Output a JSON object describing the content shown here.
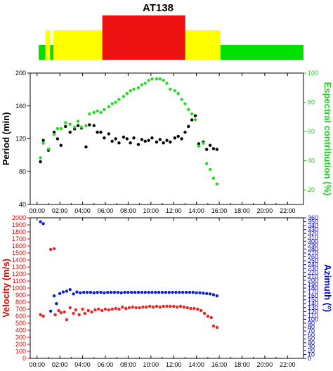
{
  "chart_data": [
    {
      "type": "timeline-bar",
      "title": "AT138",
      "segments": [
        {
          "start": 0.0,
          "end": 0.6,
          "level": 1,
          "color": "#00e000"
        },
        {
          "start": 0.6,
          "end": 1.0,
          "level": 2,
          "color": "#ffff00"
        },
        {
          "start": 1.0,
          "end": 1.3,
          "level": 1,
          "color": "#00e000"
        },
        {
          "start": 1.3,
          "end": 5.6,
          "level": 2,
          "color": "#ffff00"
        },
        {
          "start": 5.6,
          "end": 12.9,
          "level": 3,
          "color": "#ee1111"
        },
        {
          "start": 12.9,
          "end": 16.0,
          "level": 2,
          "color": "#ffff00"
        },
        {
          "start": 16.0,
          "end": 23.3,
          "level": 1,
          "color": "#00e000"
        }
      ]
    },
    {
      "type": "scatter",
      "xticks": [
        "00:00",
        "02:00",
        "04:00",
        "06:00",
        "08:00",
        "10:00",
        "12:00",
        "14:00",
        "16:00",
        "18:00",
        "20:00",
        "22:00"
      ],
      "xlim": [
        -0.6,
        23.4
      ],
      "ylabel": "Period (min)",
      "ylim": [
        40,
        200
      ],
      "yticks": [
        40,
        80,
        120,
        160,
        200
      ],
      "y2label": "Espectral contribution (%)",
      "y2lim": [
        10,
        100
      ],
      "y2ticks": [
        20,
        40,
        60,
        80,
        100
      ],
      "series": [
        {
          "axis": "left",
          "color": "#000000",
          "x": [
            0.3,
            0.55,
            1.0,
            1.5,
            1.8,
            2.1,
            2.5,
            2.9,
            3.3,
            3.6,
            3.9,
            4.3,
            4.6,
            5.0,
            5.3,
            5.6,
            5.9,
            6.3,
            6.6,
            6.9,
            7.2,
            7.6,
            7.9,
            8.2,
            8.5,
            8.9,
            9.2,
            9.5,
            9.8,
            10.1,
            10.5,
            10.8,
            11.1,
            11.4,
            11.7,
            12.1,
            12.4,
            12.7,
            13.0,
            13.3,
            13.6,
            13.9,
            14.2,
            14.6,
            14.9,
            15.2,
            15.5,
            15.8
          ],
          "y": [
            92,
            118,
            106,
            128,
            120,
            112,
            135,
            128,
            132,
            136,
            133,
            110,
            137,
            136,
            128,
            128,
            121,
            126,
            117,
            120,
            115,
            122,
            120,
            115,
            121,
            113,
            119,
            117,
            118,
            121,
            116,
            119,
            115,
            118,
            116,
            121,
            123,
            120,
            128,
            135,
            143,
            148,
            114,
            116,
            107,
            112,
            108,
            107
          ]
        },
        {
          "axis": "right",
          "color": "#22dd22",
          "x": [
            0.3,
            0.55,
            1.0,
            1.5,
            1.8,
            2.1,
            2.5,
            2.9,
            3.3,
            3.6,
            3.9,
            4.3,
            4.6,
            5.0,
            5.3,
            5.6,
            5.9,
            6.3,
            6.6,
            6.9,
            7.2,
            7.6,
            7.9,
            8.2,
            8.5,
            8.9,
            9.2,
            9.5,
            9.8,
            10.1,
            10.5,
            10.8,
            11.1,
            11.4,
            11.7,
            12.1,
            12.4,
            12.7,
            13.0,
            13.3,
            13.6,
            13.9,
            14.2,
            14.6,
            14.9,
            15.2,
            15.5,
            15.8
          ],
          "y": [
            42,
            52,
            48,
            58,
            62,
            62,
            66,
            65,
            63,
            67,
            63,
            64,
            72,
            73,
            74,
            73,
            75,
            77,
            79,
            80,
            82,
            84,
            86,
            88,
            89,
            90,
            92,
            93,
            95,
            96,
            96,
            96,
            95,
            93,
            89,
            88,
            86,
            82,
            79,
            75,
            72,
            68,
            50,
            52,
            38,
            34,
            28,
            24
          ]
        }
      ]
    },
    {
      "type": "scatter",
      "xticks": [
        "00:00",
        "02:00",
        "04:00",
        "06:00",
        "08:00",
        "10:00",
        "12:00",
        "14:00",
        "16:00",
        "18:00",
        "20:00",
        "22:00"
      ],
      "xlim": [
        -0.6,
        23.4
      ],
      "ylabel": "Velocity (m/s)",
      "ylim": [
        0,
        2000
      ],
      "yticks": [
        0,
        100,
        200,
        300,
        400,
        500,
        600,
        700,
        800,
        900,
        1000,
        1100,
        1200,
        1300,
        1400,
        1500,
        1600,
        1700,
        1800,
        1900,
        2000
      ],
      "y2label": "Azimuth (º)",
      "y2lim": [
        0,
        360
      ],
      "y2ticks": [
        0,
        10,
        20,
        30,
        40,
        50,
        60,
        70,
        80,
        90,
        100,
        110,
        120,
        130,
        140,
        150,
        160,
        170,
        180,
        190,
        200,
        210,
        220,
        230,
        240,
        250,
        260,
        270,
        280,
        290,
        300,
        310,
        320,
        330,
        340,
        350,
        360
      ],
      "series": [
        {
          "axis": "left",
          "color": "#ee2222",
          "x": [
            0.3,
            0.55,
            1.2,
            1.5,
            1.6,
            1.9,
            2.1,
            2.4,
            2.6,
            2.9,
            3.2,
            3.4,
            3.7,
            4.0,
            4.2,
            4.5,
            4.8,
            5.1,
            5.4,
            5.7,
            6.0,
            6.3,
            6.6,
            6.9,
            7.2,
            7.5,
            7.8,
            8.1,
            8.4,
            8.7,
            9.0,
            9.3,
            9.6,
            9.9,
            10.2,
            10.5,
            10.8,
            11.1,
            11.4,
            11.7,
            12.0,
            12.3,
            12.6,
            12.9,
            13.2,
            13.5,
            13.8,
            14.1,
            14.4,
            14.7,
            15.0,
            15.3,
            15.5,
            15.8
          ],
          "y": [
            620,
            600,
            1550,
            1560,
            620,
            680,
            650,
            660,
            550,
            720,
            640,
            690,
            620,
            700,
            640,
            680,
            660,
            690,
            700,
            680,
            700,
            690,
            700,
            710,
            700,
            730,
            710,
            720,
            730,
            720,
            720,
            730,
            730,
            740,
            730,
            740,
            730,
            740,
            740,
            740,
            740,
            730,
            740,
            730,
            720,
            710,
            710,
            700,
            680,
            640,
            600,
            580,
            460,
            440
          ]
        },
        {
          "axis": "right",
          "color": "#1122cc",
          "x": [
            0.3,
            0.55,
            1.2,
            1.5,
            1.7,
            2.0,
            2.3,
            2.6,
            2.9,
            3.2,
            3.5,
            3.8,
            4.1,
            4.4,
            4.7,
            5.0,
            5.3,
            5.6,
            5.9,
            6.2,
            6.5,
            6.8,
            7.1,
            7.4,
            7.7,
            8.0,
            8.3,
            8.6,
            8.9,
            9.2,
            9.5,
            9.8,
            10.1,
            10.4,
            10.7,
            11.0,
            11.3,
            11.6,
            11.9,
            12.2,
            12.5,
            12.8,
            13.1,
            13.4,
            13.7,
            14.0,
            14.3,
            14.6,
            14.9,
            15.2,
            15.5,
            15.8
          ],
          "y": [
            350,
            345,
            121,
            160,
            140,
            166,
            170,
            172,
            176,
            165,
            170,
            168,
            169,
            169,
            169,
            168,
            169,
            169,
            168,
            169,
            169,
            169,
            169,
            168,
            169,
            169,
            169,
            169,
            169,
            169,
            169,
            169,
            169,
            169,
            169,
            169,
            169,
            169,
            169,
            169,
            169,
            169,
            169,
            169,
            169,
            168,
            168,
            167,
            166,
            165,
            163,
            160
          ]
        }
      ]
    }
  ]
}
